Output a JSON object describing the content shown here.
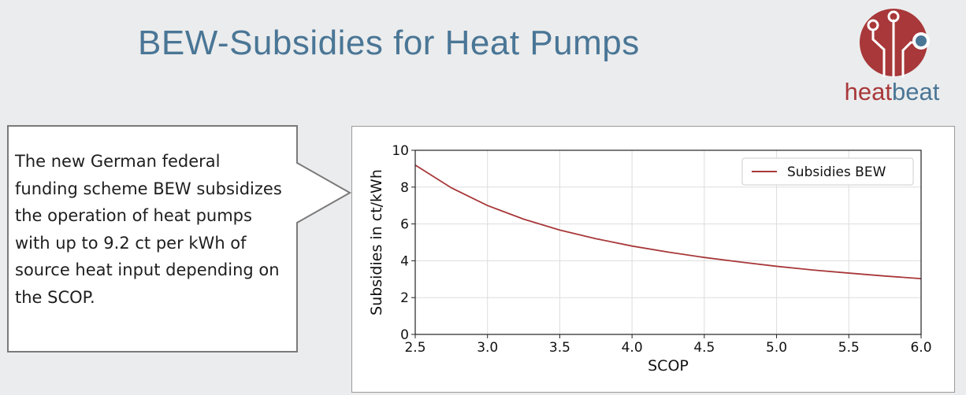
{
  "slide": {
    "title": "BEW-Subsidies for Heat Pumps",
    "logo": {
      "word_part1": "heat",
      "word_part2": "beat",
      "color_red": "#a8383a",
      "color_blue": "#4a7696"
    },
    "callout_text": "The new German federal funding scheme BEW subsidizes the operation of heat pumps with up to 9.2 ct per kWh of source heat input depending on the SCOP."
  },
  "chart_data": {
    "type": "line",
    "title": "",
    "xlabel": "SCOP",
    "ylabel": "Subsidies in ct/kWh",
    "xlim": [
      2.5,
      6.0
    ],
    "ylim": [
      0,
      10
    ],
    "xticks": [
      2.5,
      3.0,
      3.5,
      4.0,
      4.5,
      5.0,
      5.5,
      6.0
    ],
    "yticks": [
      0,
      2,
      4,
      6,
      8,
      10
    ],
    "grid": true,
    "legend_position": "top-right",
    "series": [
      {
        "name": "Subsidies BEW",
        "color": "#a8383a",
        "x": [
          2.5,
          2.75,
          3.0,
          3.25,
          3.5,
          3.75,
          4.0,
          4.25,
          4.5,
          4.75,
          5.0,
          5.25,
          5.5,
          5.75,
          6.0
        ],
        "y": [
          9.2,
          7.96,
          7.0,
          6.26,
          5.67,
          5.2,
          4.8,
          4.47,
          4.18,
          3.93,
          3.7,
          3.5,
          3.33,
          3.17,
          3.03
        ]
      }
    ]
  }
}
